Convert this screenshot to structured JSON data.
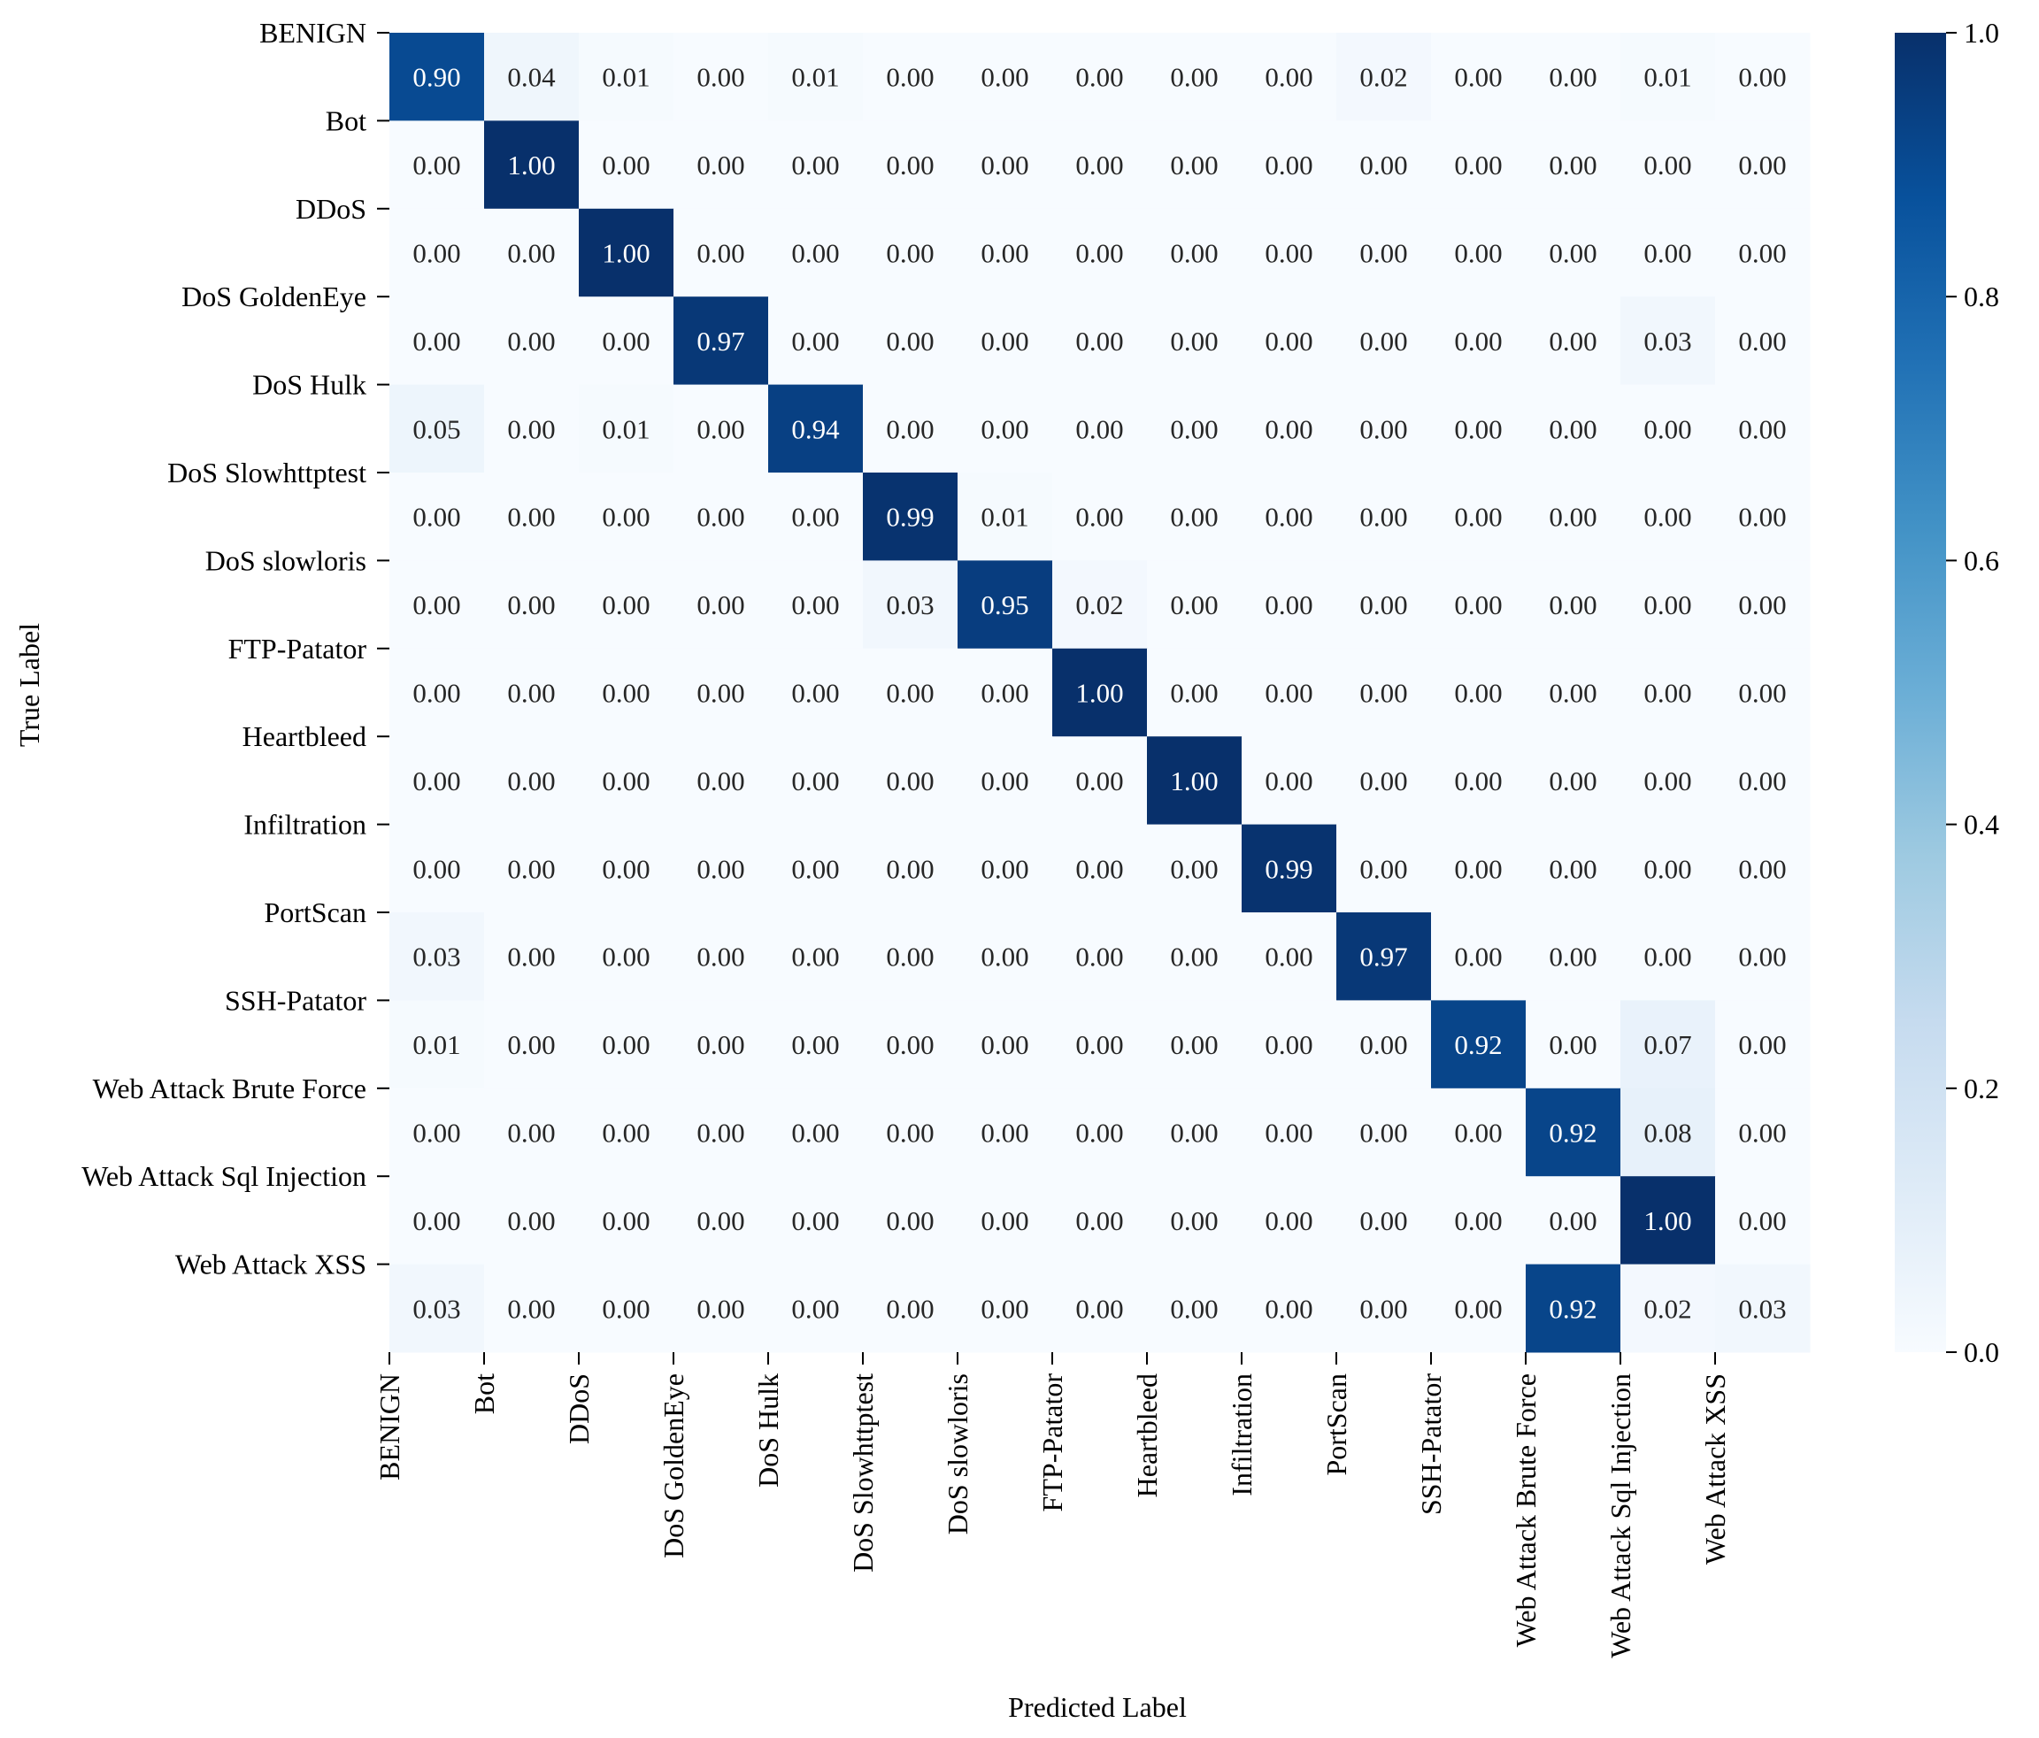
{
  "chart_data": {
    "type": "heatmap",
    "title": "",
    "xlabel": "Predicted Label",
    "ylabel": "True Label",
    "x_categories": [
      "BENIGN",
      "Bot",
      "DDoS",
      "DoS GoldenEye",
      "DoS Hulk",
      "DoS Slowhttptest",
      "DoS slowloris",
      "FTP-Patator",
      "Heartbleed",
      "Infiltration",
      "PortScan",
      "SSH-Patator",
      "Web Attack Brute Force",
      "Web Attack Sql Injection",
      "Web Attack XSS"
    ],
    "y_categories": [
      "BENIGN",
      "Bot",
      "DDoS",
      "DoS GoldenEye",
      "DoS Hulk",
      "DoS Slowhttptest",
      "DoS slowloris",
      "FTP-Patator",
      "Heartbleed",
      "Infiltration",
      "PortScan",
      "SSH-Patator",
      "Web Attack Brute Force",
      "Web Attack Sql Injection",
      "Web Attack XSS"
    ],
    "values": [
      [
        0.9,
        0.04,
        0.01,
        0.0,
        0.01,
        0.0,
        0.0,
        0.0,
        0.0,
        0.0,
        0.02,
        0.0,
        0.0,
        0.01,
        0.0
      ],
      [
        0.0,
        1.0,
        0.0,
        0.0,
        0.0,
        0.0,
        0.0,
        0.0,
        0.0,
        0.0,
        0.0,
        0.0,
        0.0,
        0.0,
        0.0
      ],
      [
        0.0,
        0.0,
        1.0,
        0.0,
        0.0,
        0.0,
        0.0,
        0.0,
        0.0,
        0.0,
        0.0,
        0.0,
        0.0,
        0.0,
        0.0
      ],
      [
        0.0,
        0.0,
        0.0,
        0.97,
        0.0,
        0.0,
        0.0,
        0.0,
        0.0,
        0.0,
        0.0,
        0.0,
        0.0,
        0.03,
        0.0
      ],
      [
        0.05,
        0.0,
        0.01,
        0.0,
        0.94,
        0.0,
        0.0,
        0.0,
        0.0,
        0.0,
        0.0,
        0.0,
        0.0,
        0.0,
        0.0
      ],
      [
        0.0,
        0.0,
        0.0,
        0.0,
        0.0,
        0.99,
        0.01,
        0.0,
        0.0,
        0.0,
        0.0,
        0.0,
        0.0,
        0.0,
        0.0
      ],
      [
        0.0,
        0.0,
        0.0,
        0.0,
        0.0,
        0.03,
        0.95,
        0.02,
        0.0,
        0.0,
        0.0,
        0.0,
        0.0,
        0.0,
        0.0
      ],
      [
        0.0,
        0.0,
        0.0,
        0.0,
        0.0,
        0.0,
        0.0,
        1.0,
        0.0,
        0.0,
        0.0,
        0.0,
        0.0,
        0.0,
        0.0
      ],
      [
        0.0,
        0.0,
        0.0,
        0.0,
        0.0,
        0.0,
        0.0,
        0.0,
        1.0,
        0.0,
        0.0,
        0.0,
        0.0,
        0.0,
        0.0
      ],
      [
        0.0,
        0.0,
        0.0,
        0.0,
        0.0,
        0.0,
        0.0,
        0.0,
        0.0,
        0.99,
        0.0,
        0.0,
        0.0,
        0.0,
        0.0
      ],
      [
        0.03,
        0.0,
        0.0,
        0.0,
        0.0,
        0.0,
        0.0,
        0.0,
        0.0,
        0.0,
        0.97,
        0.0,
        0.0,
        0.0,
        0.0
      ],
      [
        0.01,
        0.0,
        0.0,
        0.0,
        0.0,
        0.0,
        0.0,
        0.0,
        0.0,
        0.0,
        0.0,
        0.92,
        0.0,
        0.07,
        0.0
      ],
      [
        0.0,
        0.0,
        0.0,
        0.0,
        0.0,
        0.0,
        0.0,
        0.0,
        0.0,
        0.0,
        0.0,
        0.0,
        0.92,
        0.08,
        0.0
      ],
      [
        0.0,
        0.0,
        0.0,
        0.0,
        0.0,
        0.0,
        0.0,
        0.0,
        0.0,
        0.0,
        0.0,
        0.0,
        0.0,
        1.0,
        0.0
      ],
      [
        0.03,
        0.0,
        0.0,
        0.0,
        0.0,
        0.0,
        0.0,
        0.0,
        0.0,
        0.0,
        0.0,
        0.0,
        0.92,
        0.02,
        0.03
      ]
    ],
    "value_format": "2 decimals",
    "colormap": "Blues",
    "colormap_stops": [
      "#f7fbff",
      "#deebf7",
      "#c6dbef",
      "#9ecae1",
      "#6baed6",
      "#4292c6",
      "#2171b5",
      "#08519c",
      "#08306b"
    ],
    "colorbar": {
      "range": [
        0.0,
        1.0
      ],
      "ticks": [
        "0.0",
        "0.2",
        "0.4",
        "0.6",
        "0.8",
        "1.0"
      ]
    },
    "grid": false,
    "legend": "colorbar on right"
  }
}
